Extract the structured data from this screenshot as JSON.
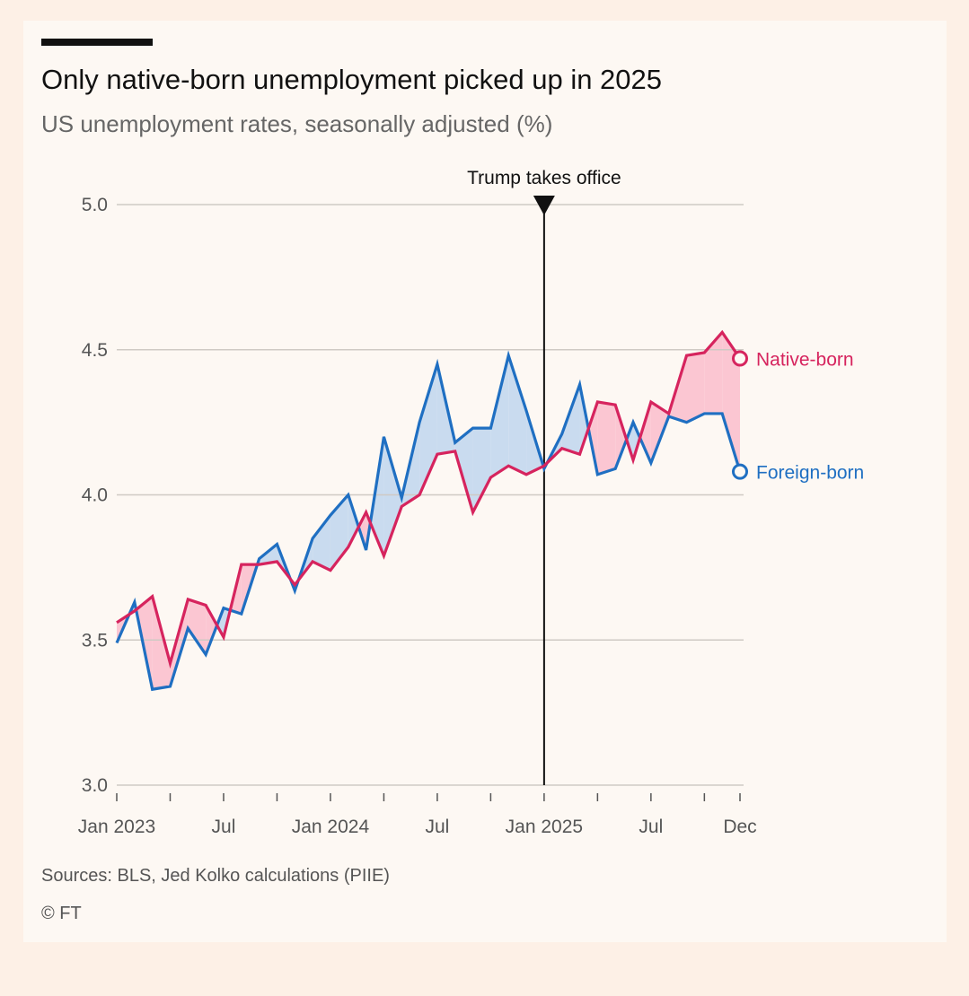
{
  "header": {
    "title": "Only native-born unemployment picked up in 2025",
    "subtitle": "US unemployment rates, seasonally adjusted (%)"
  },
  "footer": {
    "source": "Sources: BLS, Jed Kolko calculations (PIIE)",
    "copyright": "© FT"
  },
  "colors": {
    "native": "#d6245e",
    "foreign": "#1f6fc2",
    "native_fill": "#fbc6d2",
    "foreign_fill": "#c9dbef",
    "grid": "#cfcac4",
    "annotation": "#111111",
    "background": "#fdf8f3",
    "page": "#fdf0e6"
  },
  "chart_data": {
    "type": "line",
    "title": "Only native-born unemployment picked up in 2025",
    "subtitle": "US unemployment rates, seasonally adjusted (%)",
    "xlabel": "",
    "ylabel": "",
    "ylim": [
      3.0,
      5.0
    ],
    "yticks": [
      3.0,
      3.5,
      4.0,
      4.5,
      5.0
    ],
    "ytick_labels": [
      "3.0",
      "3.5",
      "4.0",
      "4.5",
      "5.0"
    ],
    "grid": true,
    "x": [
      "2023-01",
      "2023-02",
      "2023-03",
      "2023-04",
      "2023-05",
      "2023-06",
      "2023-07",
      "2023-08",
      "2023-09",
      "2023-10",
      "2023-11",
      "2023-12",
      "2024-01",
      "2024-02",
      "2024-03",
      "2024-04",
      "2024-05",
      "2024-06",
      "2024-07",
      "2024-08",
      "2024-09",
      "2024-10",
      "2024-11",
      "2024-12",
      "2025-01",
      "2025-02",
      "2025-03",
      "2025-04",
      "2025-05",
      "2025-06",
      "2025-07",
      "2025-08",
      "2025-09",
      "2025-10",
      "2025-11",
      "2025-12"
    ],
    "xticks_every_months": 3,
    "xtick_labels": [
      {
        "index": 0,
        "label": "Jan 2023"
      },
      {
        "index": 6,
        "label": "Jul"
      },
      {
        "index": 12,
        "label": "Jan 2024"
      },
      {
        "index": 18,
        "label": "Jul"
      },
      {
        "index": 24,
        "label": "Jan 2025"
      },
      {
        "index": 30,
        "label": "Jul"
      },
      {
        "index": 35,
        "label": "Dec"
      }
    ],
    "series": [
      {
        "name": "Native-born",
        "values": [
          3.56,
          3.6,
          3.65,
          3.42,
          3.64,
          3.62,
          3.51,
          3.76,
          3.76,
          3.77,
          3.69,
          3.77,
          3.74,
          3.82,
          3.94,
          3.79,
          3.96,
          4.0,
          4.14,
          4.15,
          3.94,
          4.06,
          4.1,
          4.07,
          4.1,
          4.16,
          4.14,
          4.32,
          4.31,
          4.12,
          4.32,
          4.28,
          4.48,
          4.49,
          4.56,
          4.47
        ]
      },
      {
        "name": "Foreign-born",
        "values": [
          3.49,
          3.63,
          3.33,
          3.34,
          3.54,
          3.45,
          3.61,
          3.59,
          3.78,
          3.83,
          3.67,
          3.85,
          3.93,
          4.0,
          3.81,
          4.2,
          3.99,
          4.25,
          4.45,
          4.18,
          4.23,
          4.23,
          4.48,
          4.29,
          4.09,
          4.21,
          4.38,
          4.07,
          4.09,
          4.25,
          4.11,
          4.27,
          4.25,
          4.28,
          4.28,
          4.08
        ]
      }
    ],
    "annotations": [
      {
        "index": 24,
        "label": "Trump takes office",
        "type": "vertical-line"
      }
    ],
    "legend": "direct labels at right end of lines"
  }
}
